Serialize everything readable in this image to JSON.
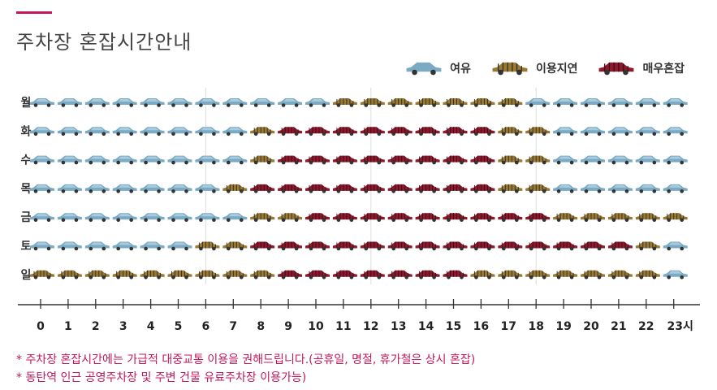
{
  "page": {
    "title": "주차장 혼잡시간안내"
  },
  "legend": [
    {
      "key": "free",
      "label": "여유",
      "icon": "car-icon-free"
    },
    {
      "key": "normal",
      "label": "이용지연",
      "icon": "car-icon-normal"
    },
    {
      "key": "busy",
      "label": "매우혼잡",
      "icon": "car-icon-busy"
    }
  ],
  "colors": {
    "free": "#7aaac4",
    "normal": "#9a7a32",
    "busy": "#8c1a2e",
    "accent": "#c2185b",
    "grid": "#dddddd"
  },
  "chart_data": {
    "type": "heatmap",
    "title": "주차장 혼잡시간안내",
    "days": [
      "월",
      "화",
      "수",
      "목",
      "금",
      "토",
      "일"
    ],
    "x_ticks": [
      "0",
      "1",
      "2",
      "3",
      "4",
      "5",
      "6",
      "7",
      "8",
      "9",
      "10",
      "11",
      "12",
      "13",
      "14",
      "15",
      "16",
      "17",
      "18",
      "19",
      "20",
      "21",
      "22",
      "23시"
    ],
    "levels": {
      "free": "여유",
      "normal": "이용지연",
      "busy": "매우혼잡"
    },
    "values": [
      [
        "free",
        "free",
        "free",
        "free",
        "free",
        "free",
        "free",
        "free",
        "free",
        "free",
        "free",
        "normal",
        "normal",
        "normal",
        "normal",
        "normal",
        "normal",
        "normal",
        "free",
        "free",
        "free",
        "free",
        "free",
        "free"
      ],
      [
        "free",
        "free",
        "free",
        "free",
        "free",
        "free",
        "free",
        "free",
        "normal",
        "busy",
        "busy",
        "busy",
        "busy",
        "busy",
        "busy",
        "busy",
        "busy",
        "normal",
        "normal",
        "free",
        "free",
        "free",
        "free",
        "free"
      ],
      [
        "free",
        "free",
        "free",
        "free",
        "free",
        "free",
        "free",
        "free",
        "normal",
        "busy",
        "busy",
        "busy",
        "busy",
        "busy",
        "busy",
        "busy",
        "busy",
        "normal",
        "normal",
        "free",
        "free",
        "free",
        "free",
        "free"
      ],
      [
        "free",
        "free",
        "free",
        "free",
        "free",
        "free",
        "free",
        "normal",
        "busy",
        "busy",
        "busy",
        "busy",
        "busy",
        "busy",
        "busy",
        "busy",
        "busy",
        "normal",
        "normal",
        "free",
        "free",
        "free",
        "free",
        "free"
      ],
      [
        "free",
        "free",
        "free",
        "free",
        "free",
        "free",
        "free",
        "free",
        "normal",
        "normal",
        "busy",
        "busy",
        "busy",
        "busy",
        "busy",
        "busy",
        "busy",
        "busy",
        "busy",
        "normal",
        "normal",
        "normal",
        "normal",
        "normal"
      ],
      [
        "free",
        "free",
        "free",
        "free",
        "free",
        "free",
        "normal",
        "normal",
        "busy",
        "busy",
        "busy",
        "busy",
        "busy",
        "busy",
        "busy",
        "busy",
        "busy",
        "busy",
        "busy",
        "busy",
        "busy",
        "busy",
        "normal",
        "free"
      ],
      [
        "normal",
        "normal",
        "normal",
        "normal",
        "normal",
        "normal",
        "normal",
        "normal",
        "normal",
        "busy",
        "busy",
        "busy",
        "busy",
        "busy",
        "busy",
        "busy",
        "normal",
        "normal",
        "normal",
        "normal",
        "normal",
        "normal",
        "normal",
        "free"
      ]
    ],
    "grid_lines_at": [
      6,
      12,
      18
    ]
  },
  "notes": [
    "* 주차장 혼잡시간에는 가급적 대중교통 이용을 권해드립니다.(공휴일, 명절, 휴가철은 상시 혼잡)",
    "* 동탄역 인근 공영주차장 및 주변 건물 유료주차장 이용가능)"
  ]
}
